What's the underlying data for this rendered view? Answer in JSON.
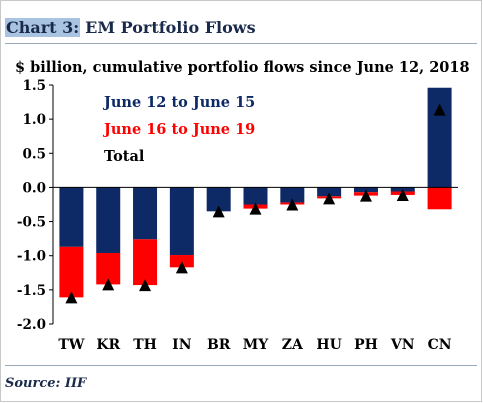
{
  "header": {
    "label": "Chart 3:",
    "title": "EM Portfolio Flows",
    "subtitle": "$ billion, cumulative portfolio flows since June 12, 2018"
  },
  "footer": {
    "source": "Source: IIF"
  },
  "colors": {
    "navy": "#0d2a66",
    "red": "#ff0000",
    "total": "#000000",
    "legend_navy": "#0d2a66",
    "legend_red": "#ff0000"
  },
  "chart_data": {
    "type": "bar",
    "stacked": true,
    "categories": [
      "TW",
      "KR",
      "TH",
      "IN",
      "BR",
      "MY",
      "ZA",
      "HU",
      "PH",
      "VN",
      "CN"
    ],
    "series": [
      {
        "name": "June 12 to June 15",
        "values": [
          -0.87,
          -0.96,
          -0.76,
          -0.99,
          -0.35,
          -0.25,
          -0.22,
          -0.13,
          -0.07,
          -0.06,
          1.46
        ]
      },
      {
        "name": "June 16 to June 19",
        "values": [
          -0.74,
          -0.46,
          -0.67,
          -0.18,
          0.0,
          -0.06,
          -0.03,
          -0.03,
          -0.05,
          -0.05,
          -0.32
        ]
      },
      {
        "name": "Total",
        "values": [
          -1.61,
          -1.42,
          -1.43,
          -1.17,
          -0.35,
          -0.31,
          -0.25,
          -0.16,
          -0.12,
          -0.11,
          1.14
        ]
      }
    ],
    "ylim": [
      -2.0,
      1.5
    ],
    "yticks": [
      "1.5",
      "1.0",
      "0.5",
      "0.0",
      "-0.5",
      "-1.0",
      "-1.5",
      "-2.0"
    ],
    "ytick_values": [
      1.5,
      1.0,
      0.5,
      0.0,
      -0.5,
      -1.0,
      -1.5,
      -2.0
    ],
    "legend": "top-left",
    "grid": false
  }
}
